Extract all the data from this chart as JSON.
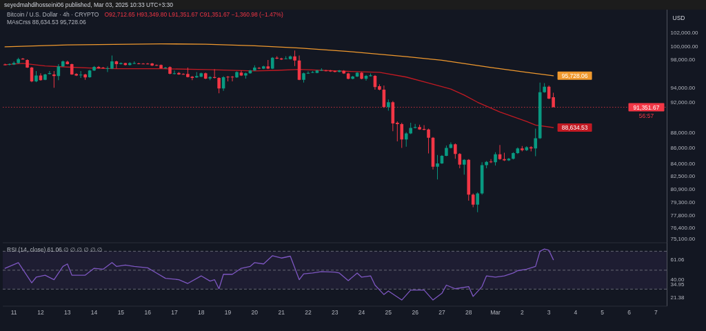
{
  "chart_data": [
    {
      "type": "candlestick",
      "title": "Bitcoin / U.S. Dollar · 4h · CRYPTO",
      "subtitle": "O92,712.65 H93,349.80 L91,351.67 C91,351.67 −1,360.98 (−1.47%)",
      "ylabel": "USD",
      "annotations": [
        "seyedmahdihosseini06 published, Mar 03, 2025 10:33 UTC+3:30",
        "MAsCrss 88,634.53 95,728.06",
        "56:57",
        {
          "text": "88,634.53",
          "x": "2025-03-03T04:00",
          "y": 88634.53
        },
        {
          "text": "95,728.06",
          "x": "2025-03-03T04:00",
          "y": 95728.06
        }
      ],
      "x": [
        "2025-02-10T16:00",
        "2025-02-10T20:00",
        "2025-02-11T00:00",
        "2025-02-11T04:00",
        "2025-02-11T08:00",
        "2025-02-11T12:00",
        "2025-02-11T16:00",
        "2025-02-11T20:00",
        "2025-02-12T00:00",
        "2025-02-12T04:00",
        "2025-02-12T08:00",
        "2025-02-12T12:00",
        "2025-02-12T16:00",
        "2025-02-12T20:00",
        "2025-02-13T00:00",
        "2025-02-13T04:00",
        "2025-02-13T08:00",
        "2025-02-13T12:00",
        "2025-02-13T16:00",
        "2025-02-13T20:00",
        "2025-02-14T00:00",
        "2025-02-14T04:00",
        "2025-02-14T08:00",
        "2025-02-14T12:00",
        "2025-02-14T16:00",
        "2025-02-14T20:00",
        "2025-02-15T00:00",
        "2025-02-15T04:00",
        "2025-02-15T08:00",
        "2025-02-15T12:00",
        "2025-02-15T16:00",
        "2025-02-15T20:00",
        "2025-02-16T00:00",
        "2025-02-16T04:00",
        "2025-02-16T08:00",
        "2025-02-16T12:00",
        "2025-02-16T16:00",
        "2025-02-16T20:00",
        "2025-02-17T00:00",
        "2025-02-17T04:00",
        "2025-02-17T08:00",
        "2025-02-17T12:00",
        "2025-02-17T16:00",
        "2025-02-17T20:00",
        "2025-02-18T00:00",
        "2025-02-18T04:00",
        "2025-02-18T08:00",
        "2025-02-18T12:00",
        "2025-02-18T16:00",
        "2025-02-18T20:00",
        "2025-02-19T00:00",
        "2025-02-19T04:00",
        "2025-02-19T08:00",
        "2025-02-19T12:00",
        "2025-02-19T16:00",
        "2025-02-19T20:00",
        "2025-02-20T00:00",
        "2025-02-20T04:00",
        "2025-02-20T08:00",
        "2025-02-20T12:00",
        "2025-02-20T16:00",
        "2025-02-20T20:00",
        "2025-02-21T00:00",
        "2025-02-21T04:00",
        "2025-02-21T08:00",
        "2025-02-21T12:00",
        "2025-02-21T16:00",
        "2025-02-21T20:00",
        "2025-02-22T00:00",
        "2025-02-22T04:00",
        "2025-02-22T08:00",
        "2025-02-22T12:00",
        "2025-02-22T16:00",
        "2025-02-22T20:00",
        "2025-02-23T00:00",
        "2025-02-23T04:00",
        "2025-02-23T08:00",
        "2025-02-23T12:00",
        "2025-02-23T16:00",
        "2025-02-23T20:00",
        "2025-02-24T00:00",
        "2025-02-24T04:00",
        "2025-02-24T08:00",
        "2025-02-24T12:00",
        "2025-02-24T16:00",
        "2025-02-24T20:00",
        "2025-02-25T00:00",
        "2025-02-25T04:00",
        "2025-02-25T08:00",
        "2025-02-25T12:00",
        "2025-02-25T16:00",
        "2025-02-25T20:00",
        "2025-02-26T00:00",
        "2025-02-26T04:00",
        "2025-02-26T08:00",
        "2025-02-26T12:00",
        "2025-02-26T16:00",
        "2025-02-26T20:00",
        "2025-02-27T00:00",
        "2025-02-27T04:00",
        "2025-02-27T08:00",
        "2025-02-27T12:00",
        "2025-02-27T16:00",
        "2025-02-27T20:00",
        "2025-02-28T00:00",
        "2025-02-28T04:00",
        "2025-02-28T08:00",
        "2025-02-28T12:00",
        "2025-02-28T16:00",
        "2025-02-28T20:00",
        "2025-03-01T00:00",
        "2025-03-01T04:00",
        "2025-03-01T08:00",
        "2025-03-01T12:00",
        "2025-03-01T16:00",
        "2025-03-01T20:00",
        "2025-03-02T00:00",
        "2025-03-02T04:00",
        "2025-03-02T08:00",
        "2025-03-02T12:00",
        "2025-03-02T16:00",
        "2025-03-02T20:00",
        "2025-03-03T00:00",
        "2025-03-03T04:00"
      ],
      "ohlc": [
        [
          97330,
          97460,
          97230,
          97300
        ],
        [
          97300,
          97500,
          97230,
          97400
        ],
        [
          97330,
          97790,
          97260,
          97560
        ],
        [
          97530,
          98320,
          97460,
          98120
        ],
        [
          98190,
          98290,
          98040,
          98060
        ],
        [
          97990,
          98090,
          96840,
          96900
        ],
        [
          96900,
          97000,
          94820,
          94920
        ],
        [
          94920,
          96410,
          94820,
          95750
        ],
        [
          95750,
          96080,
          95020,
          95090
        ],
        [
          95150,
          96010,
          95090,
          95910
        ],
        [
          95980,
          96410,
          95910,
          96110
        ],
        [
          95910,
          96410,
          94030,
          95680
        ],
        [
          95680,
          97400,
          95090,
          97070
        ],
        [
          97070,
          97920,
          97000,
          97790
        ],
        [
          97730,
          97890,
          97330,
          97400
        ],
        [
          97400,
          97460,
          95850,
          95910
        ],
        [
          95980,
          96080,
          95680,
          95750
        ],
        [
          95810,
          96410,
          95420,
          95880
        ],
        [
          95910,
          96010,
          95150,
          95480
        ],
        [
          95510,
          96570,
          95450,
          96470
        ],
        [
          96470,
          97130,
          96410,
          97000
        ],
        [
          97000,
          97130,
          96740,
          96800
        ],
        [
          96900,
          97000,
          96740,
          96800
        ],
        [
          96740,
          97070,
          96240,
          96800
        ],
        [
          96740,
          98650,
          96670,
          97790
        ],
        [
          97790,
          97890,
          96740,
          97400
        ],
        [
          97400,
          97630,
          97330,
          97530
        ],
        [
          97530,
          97600,
          97200,
          97260
        ],
        [
          97260,
          97660,
          97200,
          97530
        ],
        [
          97460,
          97790,
          97400,
          97530
        ],
        [
          97500,
          97600,
          97360,
          97430
        ],
        [
          97460,
          97530,
          97360,
          97430
        ],
        [
          97460,
          97560,
          97330,
          97400
        ],
        [
          97500,
          97560,
          97130,
          97200
        ],
        [
          97260,
          97330,
          97130,
          97200
        ],
        [
          97260,
          97330,
          96740,
          96800
        ],
        [
          96800,
          97000,
          96740,
          96900
        ],
        [
          96970,
          97070,
          95940,
          96010
        ],
        [
          96010,
          96470,
          95910,
          96080
        ],
        [
          96140,
          96240,
          95850,
          95910
        ],
        [
          95980,
          96080,
          95850,
          95910
        ],
        [
          95980,
          96900,
          95480,
          95550
        ],
        [
          95580,
          95680,
          95090,
          95420
        ],
        [
          95480,
          96240,
          95420,
          95680
        ],
        [
          95580,
          96170,
          95510,
          96080
        ],
        [
          96080,
          96170,
          95250,
          95320
        ],
        [
          95350,
          95650,
          95090,
          95550
        ],
        [
          95550,
          96670,
          95350,
          95420
        ],
        [
          95420,
          95510,
          93270,
          93930
        ],
        [
          93930,
          95650,
          93600,
          95510
        ],
        [
          95580,
          95680,
          94920,
          95480
        ],
        [
          95580,
          95680,
          94920,
          95480
        ],
        [
          95480,
          96340,
          95420,
          96240
        ],
        [
          96170,
          96470,
          95680,
          95750
        ],
        [
          95750,
          96170,
          95320,
          96080
        ],
        [
          96080,
          96570,
          96010,
          96470
        ],
        [
          96470,
          97230,
          96410,
          96900
        ],
        [
          96840,
          96970,
          96670,
          96740
        ],
        [
          96740,
          97160,
          96670,
          97070
        ],
        [
          97070,
          97990,
          96670,
          96740
        ],
        [
          96740,
          98420,
          96670,
          98320
        ],
        [
          98320,
          98550,
          98120,
          98190
        ],
        [
          98220,
          98320,
          97990,
          98060
        ],
        [
          98150,
          98550,
          98090,
          98220
        ],
        [
          98120,
          98650,
          98060,
          98520
        ],
        [
          98520,
          99380,
          97130,
          97920
        ],
        [
          97920,
          98650,
          95090,
          95150
        ],
        [
          95150,
          96170,
          94760,
          96080
        ],
        [
          96080,
          96340,
          96010,
          96140
        ],
        [
          96170,
          96410,
          96110,
          96240
        ],
        [
          96140,
          96570,
          96080,
          96470
        ],
        [
          96470,
          96800,
          96410,
          96540
        ],
        [
          96470,
          96570,
          96340,
          96410
        ],
        [
          96470,
          96540,
          96270,
          96340
        ],
        [
          96410,
          96470,
          96210,
          96270
        ],
        [
          96270,
          96540,
          96210,
          96470
        ],
        [
          96430,
          96530,
          95980,
          96050
        ],
        [
          96050,
          96150,
          95230,
          95300
        ],
        [
          95300,
          95710,
          95230,
          95610
        ],
        [
          95610,
          96250,
          95540,
          96150
        ],
        [
          96150,
          96250,
          95230,
          95300
        ],
        [
          95300,
          95840,
          95030,
          95710
        ],
        [
          95670,
          96050,
          95610,
          95780
        ],
        [
          95710,
          95840,
          93780,
          94120
        ],
        [
          94250,
          94520,
          93680,
          93780
        ],
        [
          93780,
          94350,
          91270,
          91370
        ],
        [
          91370,
          92420,
          90890,
          92030
        ],
        [
          92030,
          92200,
          88170,
          89190
        ],
        [
          89280,
          89450,
          86830,
          89090
        ],
        [
          89090,
          89280,
          86000,
          87080
        ],
        [
          87080,
          88020,
          86150,
          87860
        ],
        [
          87860,
          89280,
          87770,
          88580
        ],
        [
          88580,
          89120,
          88520,
          88710
        ],
        [
          88710,
          89030,
          88330,
          88390
        ],
        [
          88460,
          88960,
          88270,
          88330
        ],
        [
          88390,
          88490,
          85300,
          87300
        ],
        [
          87300,
          87390,
          83290,
          83640
        ],
        [
          83640,
          85090,
          82050,
          84030
        ],
        [
          84030,
          85090,
          83970,
          85000
        ],
        [
          85000,
          86310,
          84940,
          86000
        ],
        [
          86000,
          86710,
          85940,
          86460
        ],
        [
          86460,
          86560,
          84630,
          85240
        ],
        [
          85240,
          85330,
          83440,
          83880
        ],
        [
          83880,
          84570,
          82640,
          84480
        ],
        [
          84480,
          84570,
          79520,
          80230
        ],
        [
          80230,
          80370,
          78750,
          79040
        ],
        [
          79040,
          80510,
          78170,
          80370
        ],
        [
          80370,
          84180,
          80230,
          83820
        ],
        [
          83820,
          84330,
          83440,
          84240
        ],
        [
          84270,
          84570,
          84090,
          84180
        ],
        [
          84180,
          85450,
          83790,
          85180
        ],
        [
          85180,
          86370,
          84480,
          84570
        ],
        [
          84570,
          85390,
          84330,
          84420
        ],
        [
          84420,
          84720,
          84330,
          84630
        ],
        [
          84630,
          85450,
          84540,
          85330
        ],
        [
          85330,
          86060,
          85240,
          85940
        ],
        [
          85940,
          86250,
          85550,
          85700
        ],
        [
          85700,
          86220,
          85610,
          86090
        ],
        [
          86090,
          86220,
          85550,
          85940
        ],
        [
          85940,
          88490,
          84940,
          87240
        ],
        [
          87240,
          94760,
          87150,
          93420
        ],
        [
          93420,
          94690,
          93350,
          94180
        ],
        [
          94180,
          94350,
          92460,
          92520
        ],
        [
          92712.65,
          93349.8,
          91351.67,
          91351.67
        ]
      ],
      "series": [
        {
          "type": "line",
          "color": "#c21a23",
          "x": [
            "2025-02-10T16:00",
            "2025-02-11T08:00",
            "2025-02-12T04:00",
            "2025-02-13T00:00",
            "2025-02-14T00:00",
            "2025-02-14T20:00",
            "2025-02-16T12:00",
            "2025-02-18T04:00",
            "2025-02-20T00:00",
            "2025-02-20T20:00",
            "2025-02-21T16:00",
            "2025-02-23T12:00",
            "2025-02-24T16:00",
            "2025-02-25T16:00",
            "2025-02-26T12:00",
            "2025-02-27T08:00",
            "2025-02-27T20:00",
            "2025-02-28T08:00",
            "2025-03-01T04:00",
            "2025-03-02T04:00",
            "2025-03-02T12:00",
            "2025-03-03T04:00"
          ],
          "values": [
            97300,
            97500,
            97130,
            96970,
            96800,
            96740,
            96740,
            96600,
            96410,
            96500,
            96640,
            96350,
            96220,
            95540,
            94690,
            93850,
            93020,
            92030,
            90720,
            89440,
            88960,
            88634.53
          ]
        },
        {
          "type": "line",
          "color": "#f0992e",
          "x": [
            "2025-02-10T16:00",
            "2025-02-13T00:00",
            "2025-02-16T12:00",
            "2025-02-18T04:00",
            "2025-02-20T00:00",
            "2025-02-21T16:00",
            "2025-02-23T12:00",
            "2025-02-25T16:00",
            "2025-02-27T00:00",
            "2025-02-28T20:00",
            "2025-03-02T04:00",
            "2025-03-03T04:00"
          ],
          "values": [
            99930,
            100220,
            100370,
            100320,
            100090,
            99750,
            99240,
            98480,
            97950,
            96910,
            96220,
            95728.06
          ]
        }
      ],
      "log": true,
      "xlim": [
        "2025-02-10T14:00",
        "2025-03-07T10:00"
      ],
      "ylim": [
        74700,
        105600
      ],
      "yticks": [
        {
          "value": 102000,
          "label": "102,000.00"
        },
        {
          "value": 100000,
          "label": "100,000.00"
        },
        {
          "value": 98000,
          "label": "98,000.00"
        },
        {
          "value": 94000,
          "label": "94,000.00"
        },
        {
          "value": 92000,
          "label": "92,000.00"
        },
        {
          "value": 88000,
          "label": "88,000.00"
        },
        {
          "value": 86000,
          "label": "86,000.00"
        },
        {
          "value": 84000,
          "label": "84,000.00"
        },
        {
          "value": 82500,
          "label": "82,500.00"
        },
        {
          "value": 80900,
          "label": "80,900.00"
        },
        {
          "value": 79300,
          "label": "79,300.00"
        },
        {
          "value": 77800,
          "label": "77,800.00"
        },
        {
          "value": 76400,
          "label": "76,400.00"
        },
        {
          "value": 75100,
          "label": "75,100.00"
        }
      ],
      "ref_lines": [
        {
          "axis": "y",
          "value": 91351.67,
          "label": "91,351.67",
          "color": "#f23645",
          "line_style": "dotted"
        }
      ],
      "tick_labels": "y"
    },
    {
      "type": "line",
      "title": "RSI (14, close) 61.06 ∅ ∅ ∅ ∅ ∅ ∅",
      "series": [
        {
          "color": "#7e57c2",
          "x": [
            "2025-02-10T16:00",
            "2025-02-11T04:00",
            "2025-02-11T16:00",
            "2025-02-11T20:00",
            "2025-02-12T04:00",
            "2025-02-12T12:00",
            "2025-02-12T20:00",
            "2025-02-13T00:00",
            "2025-02-13T04:00",
            "2025-02-13T16:00",
            "2025-02-14T00:00",
            "2025-02-14T08:00",
            "2025-02-14T16:00",
            "2025-02-14T20:00",
            "2025-02-15T04:00",
            "2025-02-15T12:00",
            "2025-02-16T00:00",
            "2025-02-16T08:00",
            "2025-02-16T16:00",
            "2025-02-17T04:00",
            "2025-02-17T12:00",
            "2025-02-18T00:00",
            "2025-02-18T08:00",
            "2025-02-18T12:00",
            "2025-02-18T16:00",
            "2025-02-18T20:00",
            "2025-02-19T04:00",
            "2025-02-19T12:00",
            "2025-02-19T20:00",
            "2025-02-20T00:00",
            "2025-02-20T08:00",
            "2025-02-20T16:00",
            "2025-02-21T00:00",
            "2025-02-21T08:00",
            "2025-02-21T16:00",
            "2025-02-21T20:00",
            "2025-02-22T04:00",
            "2025-02-22T12:00",
            "2025-02-23T00:00",
            "2025-02-23T04:00",
            "2025-02-23T12:00",
            "2025-02-23T20:00",
            "2025-02-24T00:00",
            "2025-02-24T08:00",
            "2025-02-24T12:00",
            "2025-02-24T20:00",
            "2025-02-25T00:00",
            "2025-02-25T12:00",
            "2025-02-25T20:00",
            "2025-02-26T08:00",
            "2025-02-26T16:00",
            "2025-02-27T00:00",
            "2025-02-27T04:00",
            "2025-02-27T12:00",
            "2025-02-28T00:00",
            "2025-02-28T04:00",
            "2025-02-28T12:00",
            "2025-02-28T16:00",
            "2025-03-01T00:00",
            "2025-03-01T08:00",
            "2025-03-01T16:00",
            "2025-03-01T20:00",
            "2025-03-02T04:00",
            "2025-03-02T12:00",
            "2025-03-02T16:00",
            "2025-03-02T20:00",
            "2025-03-03T00:00",
            "2025-03-03T04:00"
          ],
          "values": [
            52,
            58,
            36.7,
            42.6,
            44.7,
            40,
            54,
            56.6,
            44.7,
            44.7,
            52,
            51,
            58,
            54,
            55.5,
            54,
            52.5,
            47,
            41.4,
            40,
            36,
            44,
            38.5,
            40,
            30.4,
            45.7,
            45.7,
            52,
            54,
            58,
            56.6,
            65.3,
            62.8,
            64.8,
            40,
            46.2,
            47,
            48.5,
            48,
            47,
            39,
            47,
            42.6,
            44,
            34.2,
            24.3,
            28,
            18.5,
            29,
            29,
            18.5,
            25.6,
            34.2,
            30.4,
            32.7,
            22.3,
            32.7,
            44,
            42.6,
            44,
            47,
            49.5,
            51,
            54,
            70,
            72.4,
            71,
            61.06
          ]
        }
      ],
      "xlim": [
        "2025-02-10T14:00",
        "2025-03-07T10:00"
      ],
      "xticks": [
        {
          "value": "2025-02-11",
          "label": "11"
        },
        {
          "value": "2025-02-12",
          "label": "12"
        },
        {
          "value": "2025-02-13",
          "label": "13"
        },
        {
          "value": "2025-02-14",
          "label": "14"
        },
        {
          "value": "2025-02-15",
          "label": "15"
        },
        {
          "value": "2025-02-16",
          "label": "16"
        },
        {
          "value": "2025-02-17",
          "label": "17"
        },
        {
          "value": "2025-02-18",
          "label": "18"
        },
        {
          "value": "2025-02-19",
          "label": "19"
        },
        {
          "value": "2025-02-20",
          "label": "20"
        },
        {
          "value": "2025-02-21",
          "label": "21"
        },
        {
          "value": "2025-02-22",
          "label": "22"
        },
        {
          "value": "2025-02-23",
          "label": "23"
        },
        {
          "value": "2025-02-24",
          "label": "24"
        },
        {
          "value": "2025-02-25",
          "label": "25"
        },
        {
          "value": "2025-02-26",
          "label": "26"
        },
        {
          "value": "2025-02-27",
          "label": "27"
        },
        {
          "value": "2025-02-28",
          "label": "28"
        },
        {
          "value": "2025-03-01",
          "label": "Mar"
        },
        {
          "value": "2025-03-02",
          "label": "2"
        },
        {
          "value": "2025-03-03",
          "label": "3"
        },
        {
          "value": "2025-03-04",
          "label": "4"
        },
        {
          "value": "2025-03-05",
          "label": "5"
        },
        {
          "value": "2025-03-06",
          "label": "6"
        },
        {
          "value": "2025-03-07",
          "label": "7"
        }
      ],
      "ylim": [
        12,
        79
      ],
      "yticks": [
        {
          "value": 61.06,
          "label": "61.06"
        },
        {
          "value": 40,
          "label": "40.00"
        },
        {
          "value": 34.95,
          "label": "34.95"
        },
        {
          "value": 21.38,
          "label": "21.38"
        }
      ],
      "ref_lines": [
        {
          "axis": "y",
          "value": 70,
          "color": "#787b86",
          "line_style": "dashed"
        },
        {
          "axis": "y",
          "value": 50,
          "color": "#787b86",
          "line_style": "dashed"
        },
        {
          "axis": "y",
          "value": 30,
          "color": "#787b86",
          "line_style": "dashed"
        }
      ],
      "bands": [
        {
          "axis": "y",
          "from": 30,
          "to": 70,
          "color": "#7e57c2"
        }
      ]
    }
  ]
}
